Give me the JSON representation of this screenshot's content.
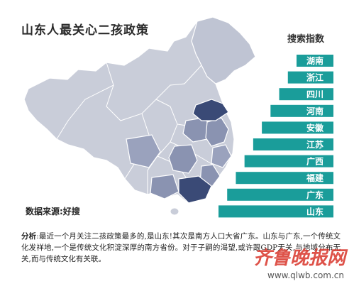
{
  "title": "山东人最关心二孩政策",
  "index_label": "搜索指数",
  "source": "数据来源:好搜",
  "analysis": {
    "lead": "分析",
    "text": ":最近一个月关注二孩政策最多的,是山东!其次是南方人口大省广东。山东与广东,一个传统文化发祥地,一个是传统文化积淀深厚的南方省份。对于子嗣的渴望,或许跟GDP无关,与地域分布无关,而与传统文化有关联。"
  },
  "watermark": {
    "logo": "齐鲁晚报网",
    "url": "www.qlwb.com.cn"
  },
  "colors": {
    "bar": "#1a9d9a",
    "bar_label": "#ffffff",
    "map_base": "#c9cdd9",
    "map_mid": "#8a93b1",
    "map_dark": "#3a4a76",
    "map_border": "#ffffff"
  },
  "chart_data": {
    "type": "bar",
    "orientation": "horizontal",
    "title": "山东人最关心二孩政策",
    "categories": [
      "湖南",
      "浙江",
      "四川",
      "河南",
      "安徽",
      "江苏",
      "广西",
      "福建",
      "广东",
      "山东"
    ],
    "values": [
      1,
      2,
      3,
      4,
      5,
      6,
      7,
      8,
      9,
      10
    ],
    "xlabel": "",
    "ylabel": "搜索指数",
    "grid": false
  }
}
